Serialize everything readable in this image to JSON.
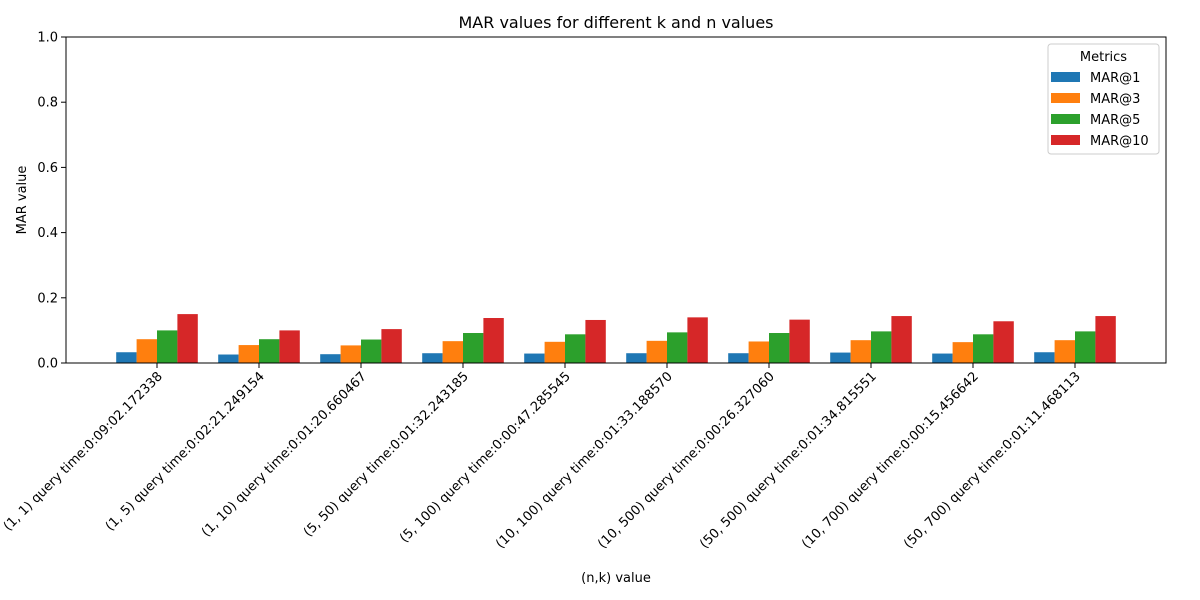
{
  "chart_data": {
    "type": "bar",
    "title": "MAR values for different k and n values",
    "xlabel": "(n,k) value",
    "ylabel": "MAR value",
    "ylim": [
      0,
      1
    ],
    "yticks": [
      "0.0",
      "0.2",
      "0.4",
      "0.6",
      "0.8",
      "1.0"
    ],
    "categories": [
      "(1, 1) query time:0:09:02.172338",
      "(1, 5) query time:0:02:21.249154",
      "(1, 10) query time:0:01:20.660467",
      "(5, 50) query time:0:01:32.243185",
      "(5, 100) query time:0:00:47.285545",
      "(10, 100) query time:0:01:33.188570",
      "(10, 500) query time:0:00:26.327060",
      "(50, 500) query time:0:01:34.815551",
      "(10, 700) query time:0:00:15.456642",
      "(50, 700) query time:0:01:11.468113"
    ],
    "legend_title": "Metrics",
    "legend_position": "top-right",
    "grid": false,
    "series": [
      {
        "name": "MAR@1",
        "color": "#1f77b4",
        "values": [
          0.033,
          0.026,
          0.027,
          0.03,
          0.029,
          0.03,
          0.03,
          0.032,
          0.029,
          0.033
        ]
      },
      {
        "name": "MAR@3",
        "color": "#ff7f0e",
        "values": [
          0.073,
          0.055,
          0.054,
          0.067,
          0.065,
          0.068,
          0.066,
          0.07,
          0.064,
          0.07
        ]
      },
      {
        "name": "MAR@5",
        "color": "#2ca02c",
        "values": [
          0.1,
          0.073,
          0.072,
          0.092,
          0.088,
          0.094,
          0.092,
          0.097,
          0.088,
          0.097
        ]
      },
      {
        "name": "MAR@10",
        "color": "#d62728",
        "values": [
          0.15,
          0.1,
          0.104,
          0.138,
          0.132,
          0.14,
          0.133,
          0.144,
          0.128,
          0.144
        ]
      }
    ]
  }
}
